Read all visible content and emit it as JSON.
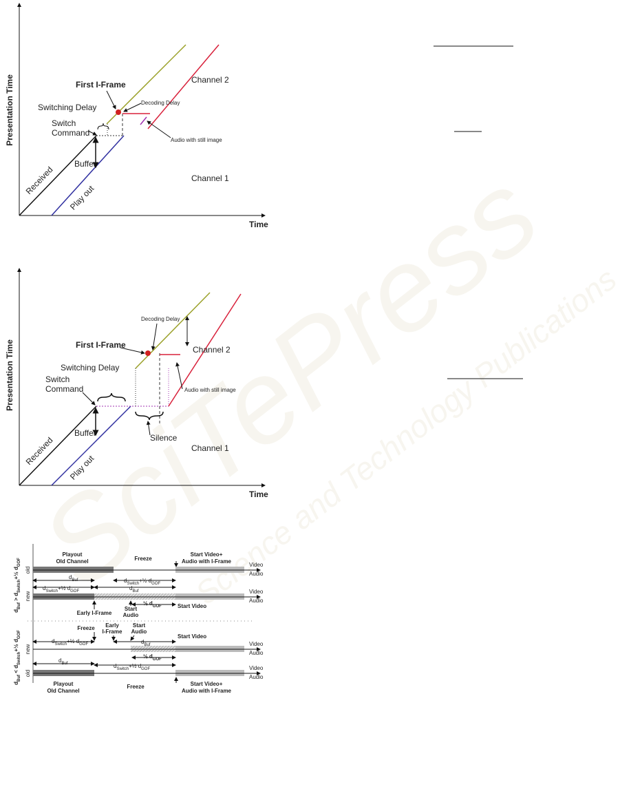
{
  "figure1": {
    "y_axis": "Presentation Time",
    "x_axis": "Time",
    "first_iframe": "First I-Frame",
    "decoding_delay": "Decoding Delay",
    "channel2": "Channel 2",
    "switching_delay": "Switching Delay",
    "switch_command": [
      "Switch",
      "Command"
    ],
    "audio_still": "Audio with still image",
    "buffer": "Buffer",
    "received": "Received",
    "play_out": "Play out",
    "channel1": "Channel 1"
  },
  "figure2": {
    "y_axis": "Presentation Time",
    "x_axis": "Time",
    "decoding_delay": "Decoding Delay",
    "first_iframe": "First I-Frame",
    "channel2": "Channel 2",
    "switching_delay": "Switching Delay",
    "switch_command": [
      "Switch",
      "Command"
    ],
    "audio_still": "Audio with still image",
    "buffer": "Buffer",
    "silence": "Silence",
    "received": "Received",
    "play_out": "Play out",
    "channel1": "Channel 1"
  },
  "figure3": {
    "case_top": [
      "d",
      "Buf",
      " > d",
      "Switch",
      "+½ d",
      "GOF"
    ],
    "case_bottom": [
      "d",
      "Buf",
      " < d",
      "Switch",
      "+½ d",
      "GOF"
    ],
    "row_old": "old",
    "row_new": "new",
    "video": "Video",
    "audio": "Audio",
    "top": {
      "playout": [
        "Playout",
        "Old Channel"
      ],
      "freeze": "Freeze",
      "start_video_audio": [
        "Start Video+",
        "Audio with I-Frame"
      ],
      "old_dbuf": [
        "d",
        "Buf"
      ],
      "old_dswitch": [
        "d",
        "Switch",
        "+½ d",
        "GOF"
      ],
      "new_dswitch": [
        "d",
        "Switch",
        "+½ d",
        "GOF"
      ],
      "new_dbuf": [
        "d",
        "Buf"
      ],
      "early_iframe": "Early I-Frame",
      "start_audio": [
        "Start",
        "Audio"
      ],
      "half_gof": [
        "½ d",
        "GOF"
      ],
      "start_video": "Start Video"
    },
    "bottom": {
      "freeze": "Freeze",
      "early_iframe": [
        "Early",
        "I-Frame"
      ],
      "start_audio": [
        "Start",
        "Audio"
      ],
      "start_video": "Start Video",
      "new_dswitch": [
        "d",
        "Switch",
        "+½ d",
        "GOF"
      ],
      "new_dbuf": [
        "d",
        "Buf"
      ],
      "half_gof": [
        "½ d",
        "GOF"
      ],
      "old_dbuf": [
        "d",
        "Buf"
      ],
      "old_dswitch": [
        "d",
        "Switch",
        "+½ d",
        "GOF"
      ],
      "playout": [
        "Playout",
        "Old Channel"
      ],
      "freeze2": "Freeze",
      "start_video_audio": [
        "Start Video+",
        "Audio with I-Frame"
      ]
    }
  },
  "watermark": {
    "brand": "SciTePress",
    "publisher": "Science and Technology Publications"
  }
}
